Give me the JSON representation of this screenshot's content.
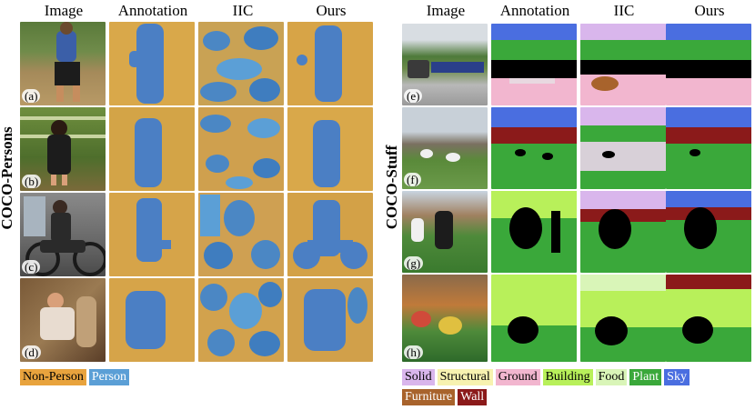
{
  "colors": {
    "non_person": "#e8a33d",
    "person": "#5b9fd6",
    "solid": "#d9b6ec",
    "structural": "#f7f2b0",
    "ground": "#f2b6cf",
    "building": "#b8f05a",
    "food": "#d9f5b8",
    "plant": "#3aa83a",
    "sky": "#4a6ee0",
    "furniture": "#a8632c",
    "wall": "#8b1a1a"
  },
  "left": {
    "column_headers": [
      "Image",
      "Annotation",
      "IIC",
      "Ours"
    ],
    "side_label": "COCO-Persons",
    "rows": [
      "(a)",
      "(b)",
      "(c)",
      "(d)"
    ],
    "legend": [
      {
        "label": "Non-Person",
        "color": "#e8a33d"
      },
      {
        "label": "Person",
        "color": "#5b9fd6"
      }
    ]
  },
  "right": {
    "column_headers": [
      "Image",
      "Annotation",
      "IIC",
      "Ours"
    ],
    "side_label": "COCO-Stuff",
    "rows": [
      "(e)",
      "(f)",
      "(g)",
      "(h)"
    ],
    "legend_line1": [
      {
        "label": "Solid",
        "color": "#d9b6ec"
      },
      {
        "label": "Structural",
        "color": "#f7f2b0"
      },
      {
        "label": "Ground",
        "color": "#f2b6cf"
      },
      {
        "label": "Building",
        "color": "#b8f05a"
      },
      {
        "label": "Food",
        "color": "#d9f5b8"
      },
      {
        "label": "Plant",
        "color": "#3aa83a"
      },
      {
        "label": "Sky",
        "color": "#4a6ee0"
      }
    ],
    "legend_line2": [
      {
        "label": "Furniture",
        "color": "#a8632c"
      },
      {
        "label": "Wall",
        "color": "#8b1a1a"
      }
    ]
  }
}
